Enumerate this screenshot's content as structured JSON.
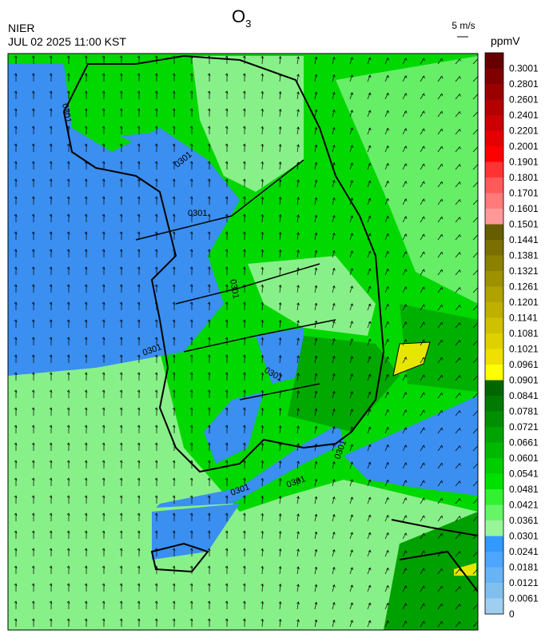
{
  "header": {
    "title": "O",
    "title_sub": "3",
    "agency": "NIER",
    "datetime": "JUL 02 2025 11:00 KST",
    "vector_scale": "5 m/s"
  },
  "legend": {
    "unit": "ppmV",
    "labels": [
      "0.3001",
      "0.2801",
      "0.2601",
      "0.2401",
      "0.2201",
      "0.2001",
      "0.1901",
      "0.1801",
      "0.1701",
      "0.1601",
      "0.1501",
      "0.1441",
      "0.1381",
      "0.1321",
      "0.1261",
      "0.1201",
      "0.1141",
      "0.1081",
      "0.1021",
      "0.0961",
      "0.0901",
      "0.0841",
      "0.0781",
      "0.0721",
      "0.0661",
      "0.0601",
      "0.0541",
      "0.0481",
      "0.0421",
      "0.0361",
      "0.0301",
      "0.0241",
      "0.0181",
      "0.0121",
      "0.0061",
      "0"
    ],
    "colors": [
      "#660000",
      "#800000",
      "#990000",
      "#b30000",
      "#cc0000",
      "#e60000",
      "#ff0000",
      "#ff3333",
      "#ff5959",
      "#ff7a7a",
      "#ff9999",
      "#665c00",
      "#7a6f00",
      "#8c8000",
      "#9e9100",
      "#b0a200",
      "#bfb000",
      "#cfc000",
      "#dfd000",
      "#efe000",
      "#ffff00",
      "#006600",
      "#007a00",
      "#008f00",
      "#00a300",
      "#00b800",
      "#00cc00",
      "#00e000",
      "#33f033",
      "#66f566",
      "#99f599",
      "#3399ff",
      "#4da6ff",
      "#66b3f5",
      "#80c0f0",
      "#9fcff0"
    ]
  },
  "contour_labels": [
    "0301",
    "0301",
    "0301",
    "0301",
    "0301",
    "0301",
    "0301",
    "0301",
    "0301"
  ]
}
